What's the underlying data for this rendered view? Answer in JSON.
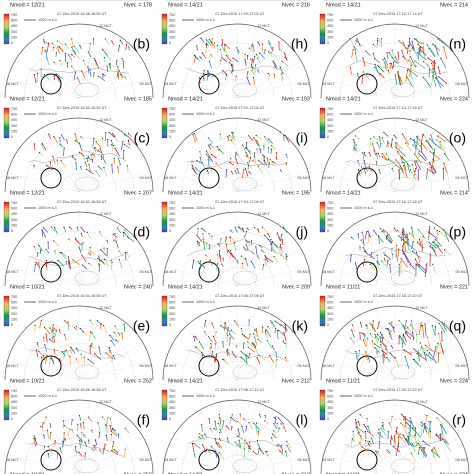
{
  "colorbar_labels": [
    "750",
    "600",
    "450",
    "300",
    "150",
    "0"
  ],
  "scale_label": "1000 m s-1",
  "mlt_labels": {
    "top": "12 MLT",
    "left": "18 MLT",
    "right": "06 MLT"
  },
  "top_strip": [
    {
      "n_mod": "Nmod = 12/21",
      "n_vec": "Nvec = 178"
    },
    {
      "n_mod": "Nmod = 14/21",
      "n_vec": "Nvec = 216"
    },
    {
      "n_mod": "Nmod = 14/21",
      "n_vec": "Nvec = 214"
    }
  ],
  "columns": [
    {
      "panels": [
        {
          "letter": "(b)",
          "time": "07-Dec-2015 16:48-16:50 UT",
          "n_mod": "Nmod = 12/21",
          "n_vec": "Nvec = 185"
        },
        {
          "letter": "(c)",
          "time": "07-Dec-2015 16:50-16:52 UT",
          "n_mod": "Nmod = 12/21",
          "n_vec": "Nvec = 207"
        },
        {
          "letter": "(d)",
          "time": "07-Dec-2015 16:52-16:54 UT",
          "n_mod": "Nmod = 10/21",
          "n_vec": "Nvec = 240"
        },
        {
          "letter": "(e)",
          "time": "07-Dec-2015 16:54-16:56 UT",
          "n_mod": "Nmod = 10/21",
          "n_vec": "Nvec = 252"
        },
        {
          "letter": "(f)",
          "time": "07-Dec-2015 16:56-16:58 UT",
          "n_mod": "Nmod = 10/21",
          "n_vec": "Nvec = 250"
        }
      ]
    },
    {
      "panels": [
        {
          "letter": "(h)",
          "time": "07-Dec-2015 17:00-17:02 UT",
          "n_mod": "Nmod = 14/21",
          "n_vec": "Nvec = 193"
        },
        {
          "letter": "(i)",
          "time": "07-Dec-2015 17:02-17:04 UT",
          "n_mod": "Nmod = 14/21",
          "n_vec": "Nvec = 195"
        },
        {
          "letter": "(j)",
          "time": "07-Dec-2015 17:04-17:06 UT",
          "n_mod": "Nmod = 14/21",
          "n_vec": "Nvec = 209"
        },
        {
          "letter": "(k)",
          "time": "07-Dec-2015 17:06-17:08 UT",
          "n_mod": "Nmod = 14/21",
          "n_vec": "Nvec = 212"
        },
        {
          "letter": "(l)",
          "time": "07-Dec-2015 17:08-17:10 UT",
          "n_mod": "Nmod = 14/21",
          "n_vec": "Nvec = 212"
        }
      ]
    },
    {
      "panels": [
        {
          "letter": "(n)",
          "time": "07-Dec-2015 17:12-17:14 UT",
          "n_mod": "Nmod = 14/21",
          "n_vec": "Nvec = 224"
        },
        {
          "letter": "(o)",
          "time": "07-Dec-2015 17:14-17:16 UT",
          "n_mod": "Nmod = 14/21",
          "n_vec": "Nvec = 214"
        },
        {
          "letter": "(p)",
          "time": "07-Dec-2015 17:16-17:18 UT",
          "n_mod": "Nmod = 11/21",
          "n_vec": "Nvec = 221"
        },
        {
          "letter": "(q)",
          "time": "07-Dec-2015 17:18-17:20 UT",
          "n_mod": "Nmod = 11/21",
          "n_vec": "Nvec = 224"
        },
        {
          "letter": "(r)",
          "time": "07-Dec-2015 17:20-17:22 UT",
          "n_mod": "Nmod = 11/21",
          "n_vec": "Nvec = 224"
        }
      ]
    }
  ]
}
